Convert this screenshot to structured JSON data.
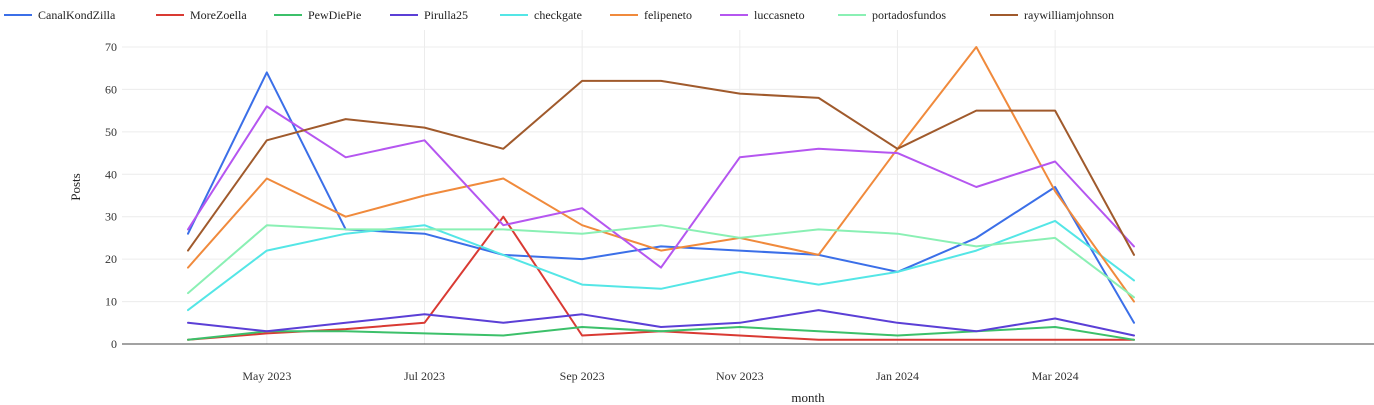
{
  "chart_data": {
    "type": "line",
    "title": "",
    "xlabel": "month",
    "ylabel": "Posts",
    "ylim": [
      0,
      74
    ],
    "yticks": [
      0,
      10,
      20,
      30,
      40,
      50,
      60,
      70
    ],
    "grid": true,
    "legend_position": "top-left",
    "x": [
      "Apr 2023",
      "May 2023",
      "Jun 2023",
      "Jul 2023",
      "Aug 2023",
      "Sep 2023",
      "Oct 2023",
      "Nov 2023",
      "Dec 2023",
      "Jan 2024",
      "Feb 2024",
      "Mar 2024",
      "Apr 2024"
    ],
    "xticks": [
      {
        "index": 1,
        "label": "May 2023"
      },
      {
        "index": 3,
        "label": "Jul 2023"
      },
      {
        "index": 5,
        "label": "Sep 2023"
      },
      {
        "index": 7,
        "label": "Nov 2023"
      },
      {
        "index": 9,
        "label": "Jan 2024"
      },
      {
        "index": 11,
        "label": "Mar 2024"
      }
    ],
    "series": [
      {
        "name": "CanalKondZilla",
        "color": "#3b6fe8",
        "values": [
          26,
          64,
          27,
          26,
          21,
          20,
          23,
          22,
          21,
          17,
          25,
          37,
          5
        ]
      },
      {
        "name": "MoreZoella",
        "color": "#d93a33",
        "values": [
          1,
          2.5,
          3.5,
          5,
          30,
          2,
          3,
          2,
          1,
          1,
          1,
          1,
          1
        ]
      },
      {
        "name": "PewDiePie",
        "color": "#3cc06a",
        "values": [
          1,
          3,
          3,
          2.5,
          2,
          4,
          3,
          4,
          3,
          2,
          3,
          4,
          1
        ]
      },
      {
        "name": "Pirulla25",
        "color": "#5b3fd6",
        "values": [
          5,
          3,
          5,
          7,
          5,
          7,
          4,
          5,
          8,
          5,
          3,
          6,
          2
        ]
      },
      {
        "name": "checkgate",
        "color": "#54e6e6",
        "values": [
          8,
          22,
          26,
          28,
          21,
          14,
          13,
          17,
          14,
          17,
          22,
          29,
          15
        ]
      },
      {
        "name": "felipeneto",
        "color": "#f08a3c",
        "values": [
          18,
          39,
          30,
          35,
          39,
          28,
          22,
          25,
          21,
          46,
          70,
          36,
          10
        ]
      },
      {
        "name": "luccasneto",
        "color": "#b556f0",
        "values": [
          27,
          56,
          44,
          48,
          28,
          32,
          18,
          44,
          46,
          45,
          37,
          43,
          23
        ]
      },
      {
        "name": "portadosfundos",
        "color": "#8af0b4",
        "values": [
          12,
          28,
          27,
          27,
          27,
          26,
          28,
          25,
          27,
          26,
          23,
          25,
          11
        ]
      },
      {
        "name": "raywilliamjohnson",
        "color": "#a05a2c",
        "values": [
          22,
          48,
          53,
          51,
          46,
          62,
          62,
          59,
          58,
          46,
          55,
          55,
          21
        ]
      }
    ]
  }
}
